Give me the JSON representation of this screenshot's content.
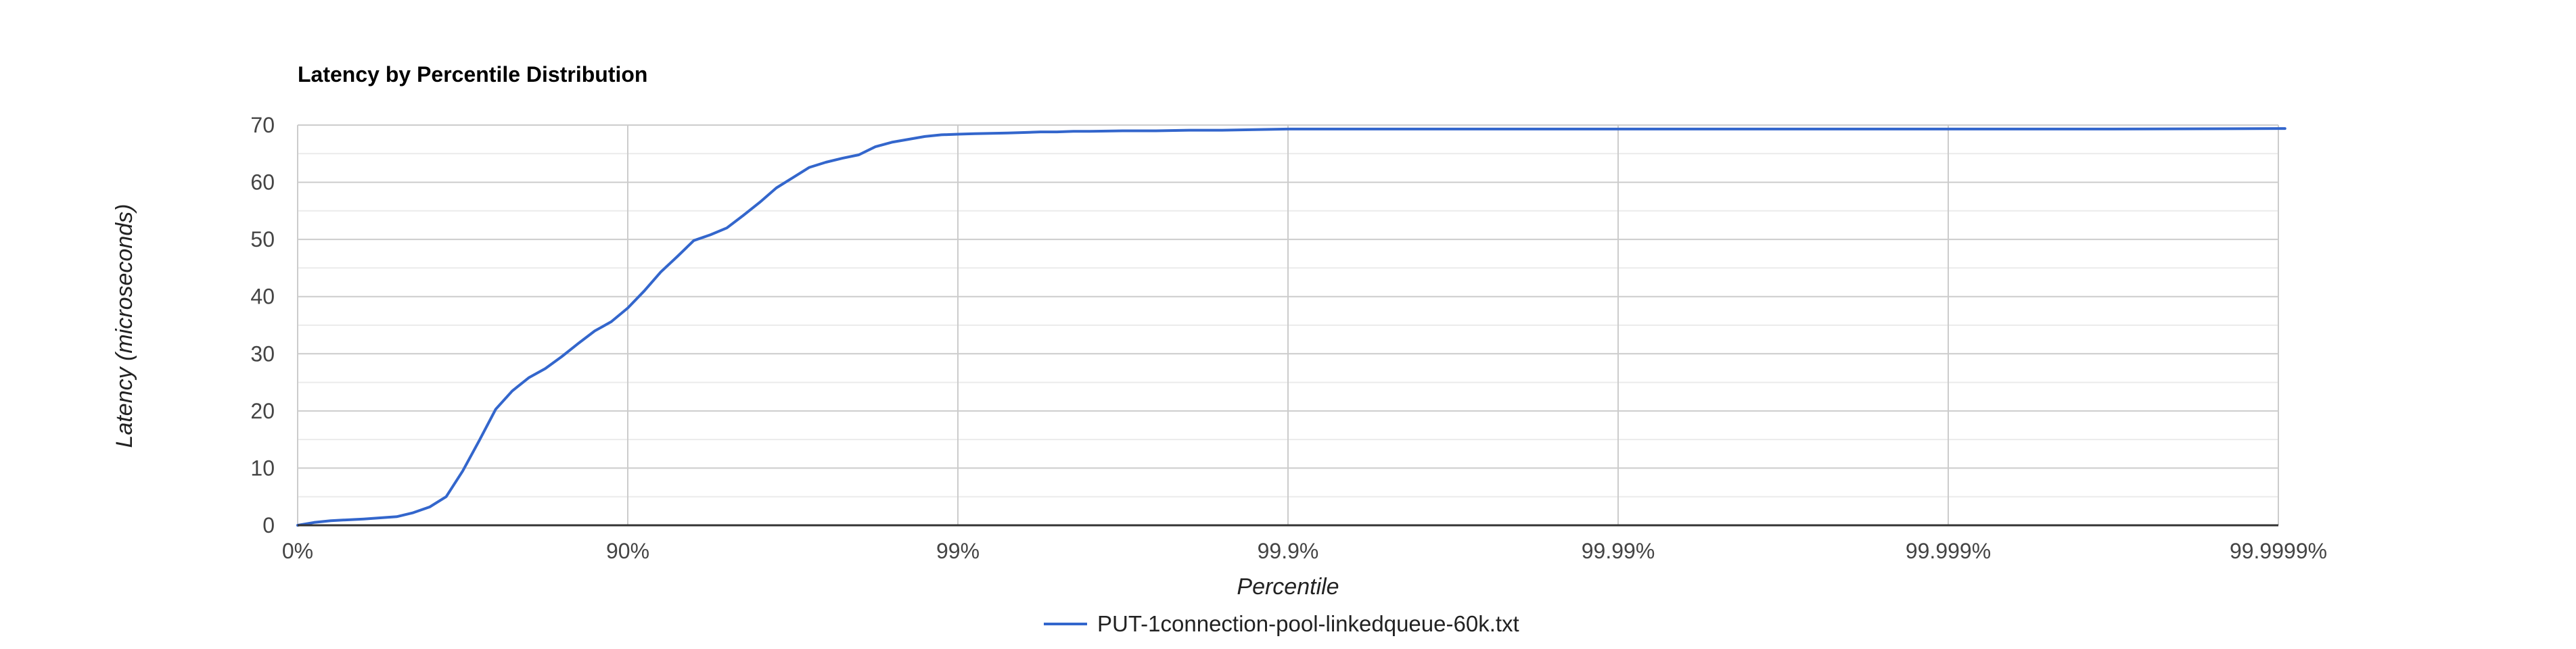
{
  "chart_data": {
    "type": "line",
    "title": "Latency by Percentile Distribution",
    "xlabel": "Percentile",
    "ylabel": "Latency (microseconds)",
    "x_scale": "log-nines",
    "x_tick_labels": [
      "0%",
      "90%",
      "99%",
      "99.9%",
      "99.99%",
      "99.999%",
      "99.9999%"
    ],
    "x_ticks_nines": [
      0,
      1,
      2,
      3,
      4,
      5,
      6
    ],
    "y_ticks": [
      0,
      10,
      20,
      30,
      40,
      50,
      60,
      70
    ],
    "ylim": [
      0,
      70
    ],
    "grid": true,
    "legend_position": "bottom",
    "colors": {
      "series": "#3366cc",
      "grid_major": "#cccccc",
      "grid_minor": "#ebebeb",
      "baseline": "#333333"
    },
    "series": [
      {
        "name": "PUT-1connection-pool-linkedqueue-60k.txt",
        "nines": [
          0,
          0.05,
          0.1,
          0.2,
          0.3,
          0.35,
          0.4,
          0.45,
          0.5,
          0.55,
          0.6,
          0.65,
          0.7,
          0.75,
          0.8,
          0.85,
          0.9,
          0.95,
          1.0,
          1.05,
          1.1,
          1.15,
          1.2,
          1.25,
          1.3,
          1.35,
          1.4,
          1.45,
          1.5,
          1.55,
          1.6,
          1.65,
          1.7,
          1.75,
          1.8,
          1.85,
          1.9,
          1.95,
          2.0,
          2.05,
          2.15,
          2.2,
          2.25,
          2.3,
          2.35,
          2.4,
          2.5,
          2.6,
          2.7,
          2.8,
          2.9,
          3.0,
          3.2,
          3.4,
          3.6,
          3.8,
          4.0,
          4.5,
          5.0,
          5.5,
          6.0,
          6.02
        ],
        "values": [
          0,
          0.5,
          0.8,
          1.1,
          1.5,
          2.2,
          3.2,
          5.0,
          9.5,
          14.8,
          20.3,
          23.5,
          25.8,
          27.4,
          29.5,
          31.8,
          34.0,
          35.6,
          38.0,
          41.0,
          44.3,
          47.0,
          49.8,
          50.8,
          52.0,
          54.2,
          56.5,
          59.0,
          60.8,
          62.6,
          63.5,
          64.2,
          64.8,
          66.2,
          67.0,
          67.5,
          68.0,
          68.3,
          68.4,
          68.5,
          68.6,
          68.7,
          68.8,
          68.8,
          68.9,
          68.9,
          69.0,
          69.0,
          69.1,
          69.1,
          69.2,
          69.3,
          69.3,
          69.3,
          69.3,
          69.3,
          69.3,
          69.3,
          69.3,
          69.3,
          69.4,
          69.4
        ]
      }
    ]
  }
}
